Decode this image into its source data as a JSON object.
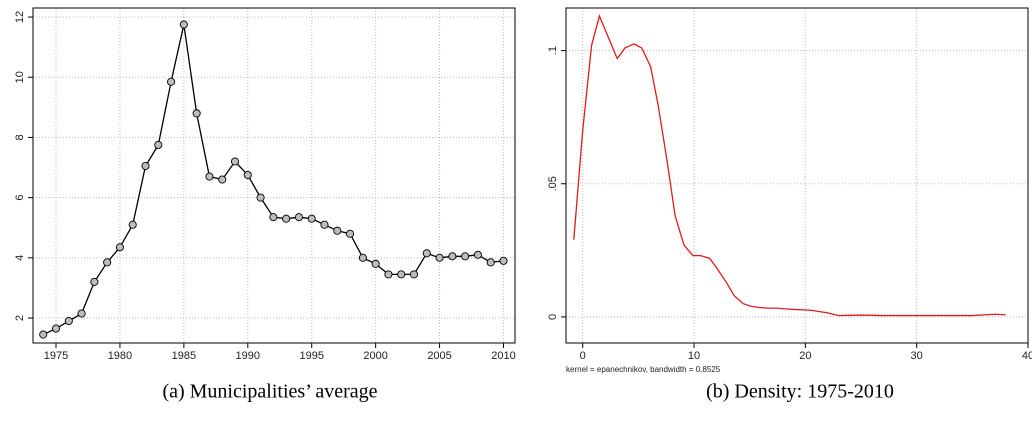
{
  "chart_data": [
    {
      "type": "line",
      "markers": true,
      "color": "#000000",
      "marker_color": "#bdbdbd",
      "caption": "(a) Municipalities’ average",
      "x": [
        1974,
        1975,
        1976,
        1977,
        1978,
        1979,
        1980,
        1981,
        1982,
        1983,
        1984,
        1985,
        1986,
        1987,
        1988,
        1989,
        1990,
        1991,
        1992,
        1993,
        1994,
        1995,
        1996,
        1997,
        1998,
        1999,
        2000,
        2001,
        2002,
        2003,
        2004,
        2005,
        2006,
        2007,
        2008,
        2009,
        2010
      ],
      "values": [
        1.45,
        1.65,
        1.9,
        2.15,
        3.2,
        3.85,
        4.35,
        5.1,
        7.05,
        7.75,
        9.85,
        11.75,
        8.8,
        6.7,
        6.6,
        7.2,
        6.75,
        6.0,
        5.35,
        5.3,
        5.35,
        5.3,
        5.1,
        4.9,
        4.8,
        4.0,
        3.8,
        3.45,
        3.45,
        3.45,
        4.15,
        4.0,
        4.05,
        4.05,
        4.1,
        3.85,
        3.9
      ],
      "xlim": [
        1973.2,
        2010.9
      ],
      "xticks": [
        1975,
        1980,
        1985,
        1990,
        1995,
        2000,
        2005,
        2010
      ],
      "ylim": [
        1.17,
        12.3
      ],
      "yticks": [
        2,
        4,
        6,
        8,
        10,
        12
      ],
      "grid": true
    },
    {
      "type": "line",
      "markers": false,
      "color": "#e41a1c",
      "caption": "(b) Density: 1975-2010",
      "note": "kernel = epanechnikov, bandwidth = 0.8525",
      "x": [
        -0.8,
        0,
        0.8,
        1.5,
        2.3,
        3.1,
        3.8,
        4.6,
        5.3,
        6.1,
        6.8,
        7.6,
        8.3,
        9.1,
        9.9,
        10.6,
        11.4,
        12.1,
        12.9,
        13.6,
        14.4,
        15.1,
        15.9,
        16.7,
        17.4,
        18.2,
        19,
        20.5,
        22,
        23,
        25,
        27,
        30,
        35,
        37,
        38
      ],
      "values": [
        0.029,
        0.07,
        0.102,
        0.113,
        0.105,
        0.097,
        0.101,
        0.1025,
        0.101,
        0.094,
        0.079,
        0.058,
        0.038,
        0.027,
        0.023,
        0.023,
        0.022,
        0.018,
        0.013,
        0.008,
        0.005,
        0.004,
        0.0035,
        0.0033,
        0.0033,
        0.003,
        0.0028,
        0.0025,
        0.0015,
        0.0005,
        0.0007,
        0.0005,
        0.0005,
        0.0005,
        0.001,
        0.0008
      ],
      "xlim": [
        -1.5,
        40
      ],
      "xticks": [
        0,
        10,
        20,
        30,
        40
      ],
      "ylim": [
        -0.0098,
        0.116
      ],
      "yticks": [
        0,
        {
          "value": 0.05,
          "label": ".05"
        },
        {
          "value": 0.1,
          "label": ".1"
        }
      ],
      "grid": true
    }
  ]
}
